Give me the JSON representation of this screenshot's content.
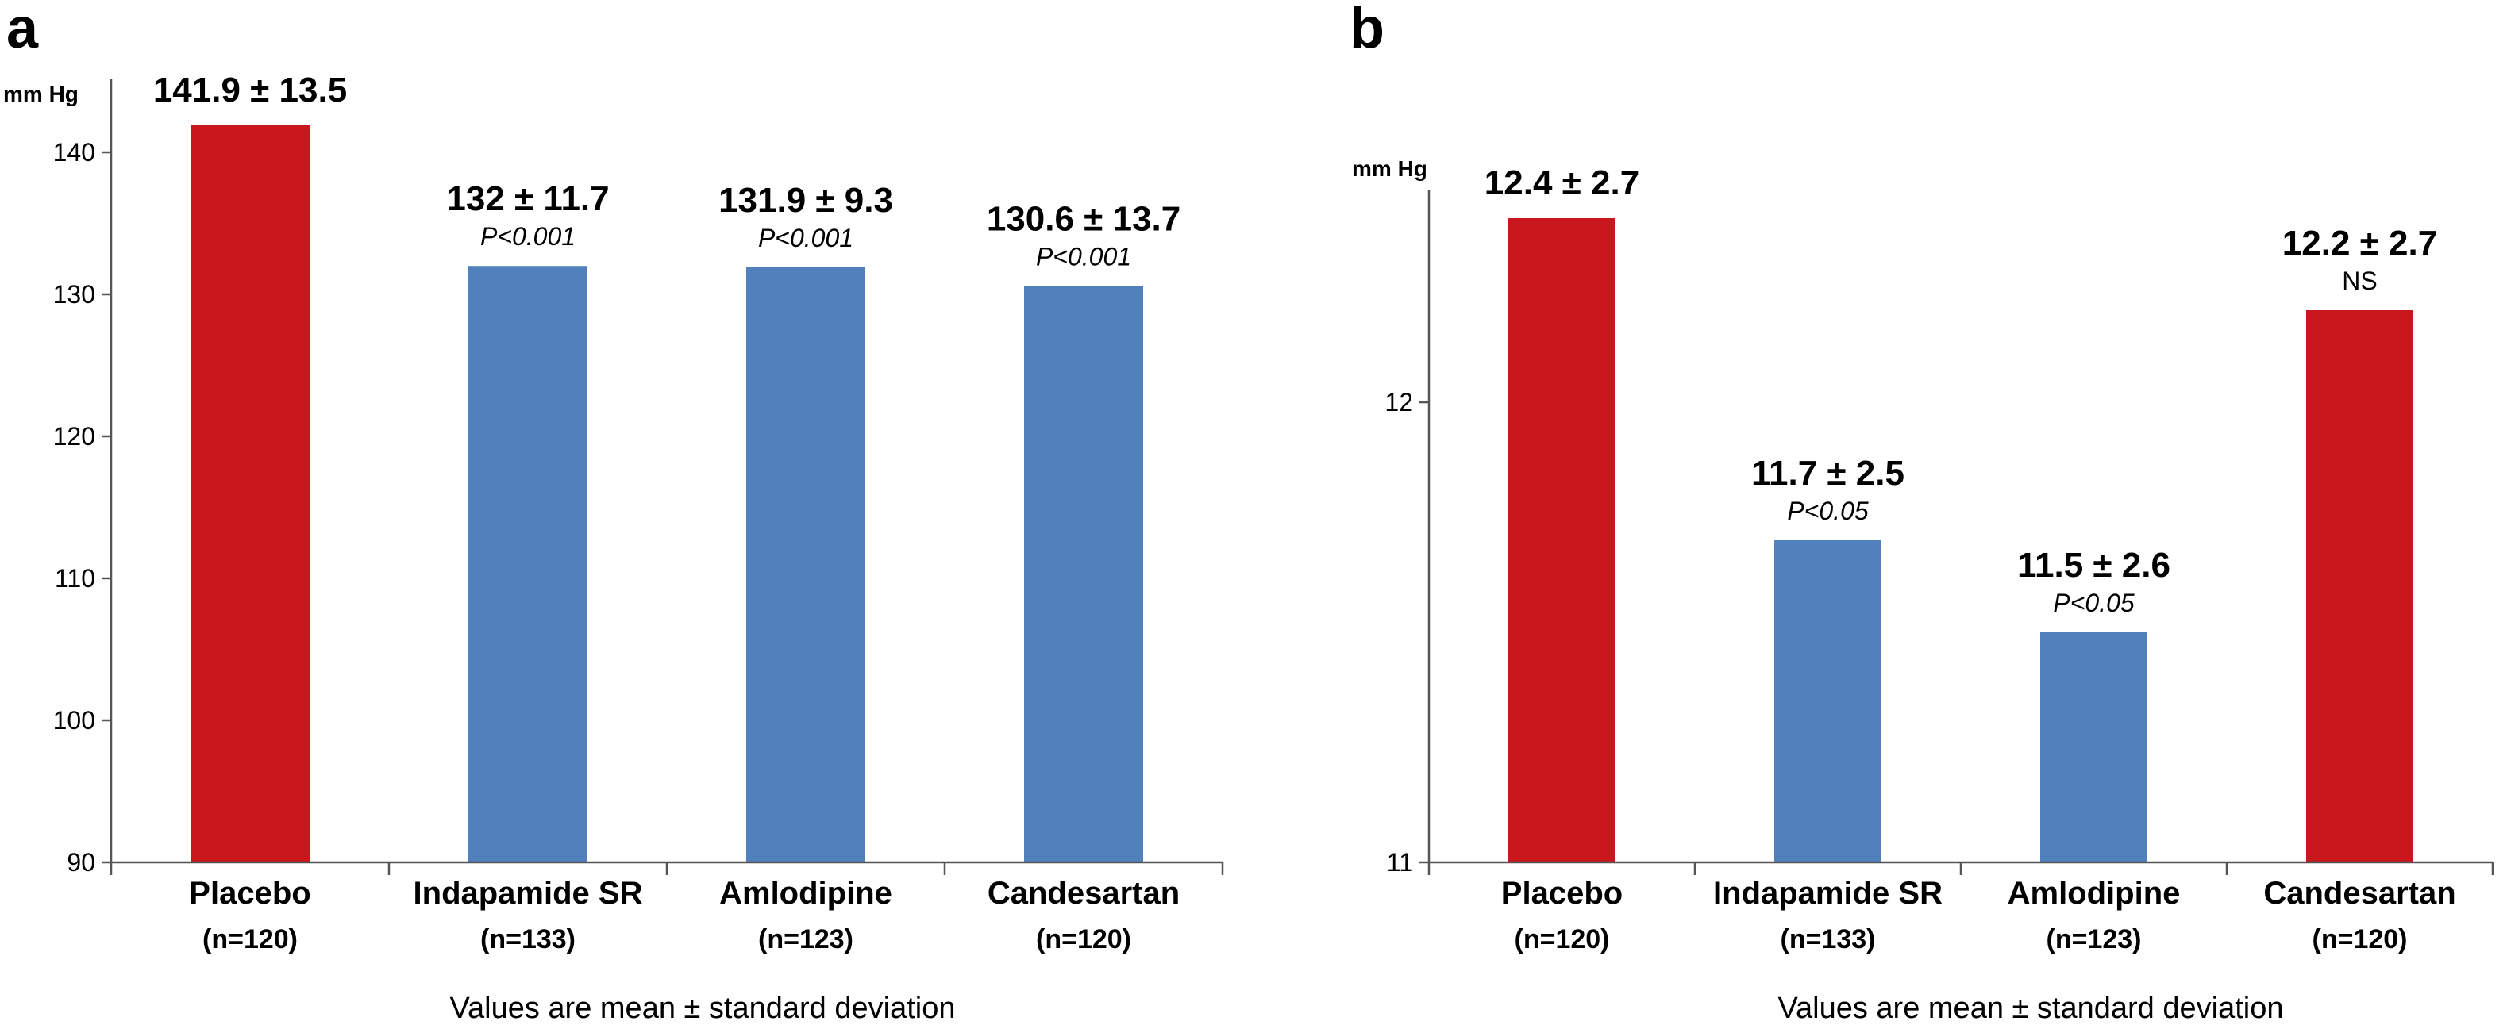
{
  "colors": {
    "placebo": "#c8171d",
    "treatment": "#5081bd"
  },
  "chart_data": [
    {
      "type": "bar",
      "panel": "a",
      "ylabel": "mm Hg",
      "ylim": [
        90,
        145
      ],
      "yticks": [
        90,
        100,
        110,
        120,
        130,
        140
      ],
      "categories": [
        "Placebo",
        "Indapamide SR",
        "Amlodipine",
        "Candesartan"
      ],
      "n_labels": [
        "(n=120)",
        "(n=133)",
        "(n=123)",
        "(n=120)"
      ],
      "values": [
        141.9,
        132,
        131.9,
        130.6
      ],
      "value_labels": [
        "141.9  ± 13.5",
        "132  ± 11.7",
        "131.9  ± 9.3",
        "130.6  ± 13.7"
      ],
      "sub_labels": [
        "",
        "P<0.001",
        "P<0.001",
        "P<0.001"
      ],
      "sub_italic": [
        false,
        true,
        true,
        true
      ],
      "bar_colors": [
        "placebo",
        "treatment",
        "treatment",
        "treatment"
      ],
      "footnote": "Values are mean ± standard deviation"
    },
    {
      "type": "bar",
      "panel": "b",
      "ylabel": "mm Hg",
      "ylim": [
        11,
        12.5
      ],
      "yticks": [
        11,
        12
      ],
      "categories": [
        "Placebo",
        "Indapamide SR",
        "Amlodipine",
        "Candesartan"
      ],
      "n_labels": [
        "(n=120)",
        "(n=133)",
        "(n=123)",
        "(n=120)"
      ],
      "values": [
        12.4,
        11.7,
        11.5,
        12.2
      ],
      "value_labels": [
        "12.4  ± 2.7",
        "11.7  ± 2.5",
        "11.5  ± 2.6",
        "12.2  ± 2.7"
      ],
      "sub_labels": [
        "",
        "P<0.05",
        "P<0.05",
        "NS"
      ],
      "sub_italic": [
        false,
        true,
        true,
        false
      ],
      "bar_colors": [
        "placebo",
        "treatment",
        "treatment",
        "placebo"
      ],
      "footnote": "Values are mean ± standard deviation"
    }
  ]
}
